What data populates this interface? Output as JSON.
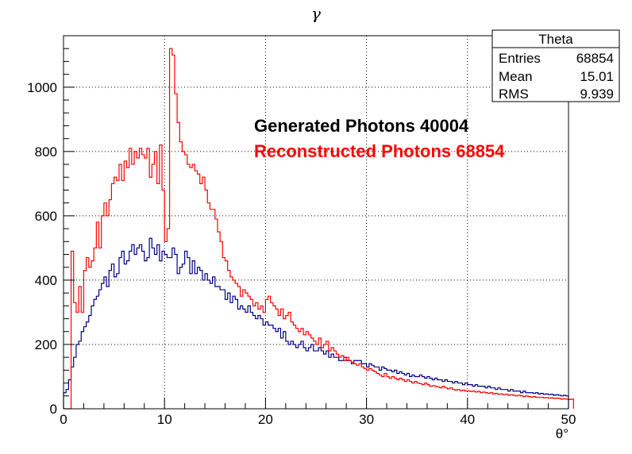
{
  "chart_data": {
    "type": "histogram",
    "title": "γ",
    "xlabel": "θ°",
    "ylabel": "",
    "xlim": [
      0,
      50
    ],
    "ylim": [
      0,
      1160
    ],
    "bin_width": 0.25,
    "x_ticks": [
      0,
      10,
      20,
      30,
      40,
      50
    ],
    "y_ticks": [
      0,
      200,
      400,
      600,
      800,
      1000
    ],
    "grid": true,
    "stats_box": {
      "title": "Theta",
      "rows": [
        {
          "label": "Entries",
          "value": "68854"
        },
        {
          "label": "Mean",
          "value": "15.01"
        },
        {
          "label": "RMS",
          "value": "9.939"
        }
      ]
    },
    "legend": [
      {
        "text": "Generated Photons 40004",
        "color": "#000000"
      },
      {
        "text": "Reconstructed Photons 68854",
        "color": "#ff0000"
      }
    ],
    "series": [
      {
        "color": "#000080",
        "values": [
          50,
          60,
          90,
          130,
          160,
          200,
          210,
          240,
          255,
          270,
          290,
          320,
          340,
          350,
          370,
          390,
          410,
          380,
          430,
          450,
          410,
          420,
          470,
          490,
          450,
          460,
          490,
          510,
          480,
          500,
          510,
          490,
          460,
          470,
          530,
          500,
          480,
          510,
          460,
          490,
          480,
          470,
          470,
          500,
          480,
          420,
          440,
          450,
          490,
          470,
          420,
          460,
          420,
          440,
          430,
          400,
          420,
          400,
          390,
          410,
          380,
          380,
          370,
          370,
          340,
          360,
          330,
          350,
          340,
          310,
          320,
          310,
          300,
          320,
          300,
          290,
          280,
          290,
          280,
          260,
          270,
          260,
          260,
          250,
          240,
          250,
          220,
          240,
          210,
          200,
          210,
          200,
          190,
          200,
          210,
          190,
          180,
          190,
          200,
          180,
          180,
          190,
          180,
          170,
          180,
          160,
          170,
          160,
          160,
          150,
          150,
          160,
          150,
          150,
          140,
          150,
          150,
          150,
          140,
          140,
          130,
          140,
          135,
          130,
          130,
          120,
          130,
          125,
          120,
          120,
          115,
          120,
          110,
          115,
          110,
          105,
          110,
          100,
          105,
          100,
          100,
          105,
          100,
          95,
          100,
          95,
          90,
          95,
          90,
          90,
          85,
          90,
          85,
          85,
          80,
          85,
          80,
          80,
          75,
          80,
          75,
          75,
          70,
          75,
          70,
          70,
          70,
          65,
          70,
          65,
          65,
          60,
          65,
          60,
          60,
          60,
          55,
          60,
          55,
          55,
          55,
          50,
          55,
          50,
          50,
          50,
          48,
          50,
          46,
          48,
          45,
          46,
          44,
          45,
          42,
          44,
          42,
          40,
          42,
          40
        ]
      },
      {
        "color": "#ff0000",
        "values": [
          0,
          0,
          0,
          490,
          330,
          300,
          380,
          300,
          430,
          470,
          440,
          460,
          500,
          580,
          500,
          600,
          640,
          600,
          650,
          700,
          720,
          710,
          760,
          710,
          770,
          750,
          810,
          760,
          800,
          780,
          810,
          790,
          780,
          810,
          720,
          760,
          800,
          700,
          820,
          680,
          520,
          560,
          1120,
          1100,
          980,
          890,
          830,
          800,
          790,
          760,
          750,
          760,
          740,
          730,
          700,
          720,
          680,
          640,
          620,
          620,
          590,
          550,
          520,
          470,
          460,
          430,
          410,
          400,
          390,
          380,
          350,
          370,
          360,
          350,
          340,
          320,
          330,
          310,
          320,
          300,
          340,
          350,
          330,
          320,
          310,
          290,
          310,
          280,
          290,
          300,
          270,
          260,
          250,
          240,
          250,
          230,
          240,
          230,
          220,
          210,
          200,
          220,
          190,
          200,
          210,
          180,
          190,
          180,
          170,
          160,
          165,
          150,
          160,
          150,
          145,
          140,
          135,
          140,
          130,
          125,
          120,
          125,
          120,
          115,
          110,
          105,
          100,
          110,
          100,
          95,
          100,
          95,
          90,
          95,
          90,
          85,
          90,
          85,
          80,
          85,
          80,
          78,
          75,
          80,
          75,
          70,
          72,
          70,
          68,
          65,
          70,
          65,
          62,
          65,
          60,
          58,
          60,
          56,
          58,
          55,
          56,
          54,
          55,
          52,
          54,
          50,
          52,
          50,
          48,
          50,
          46,
          48,
          45,
          46,
          44,
          45,
          42,
          44,
          42,
          40,
          42,
          40,
          38,
          40,
          38,
          36,
          38,
          36,
          35,
          36,
          34,
          35,
          33,
          34,
          32,
          33,
          32,
          30,
          31,
          30,
          29,
          30
        ]
      }
    ]
  }
}
